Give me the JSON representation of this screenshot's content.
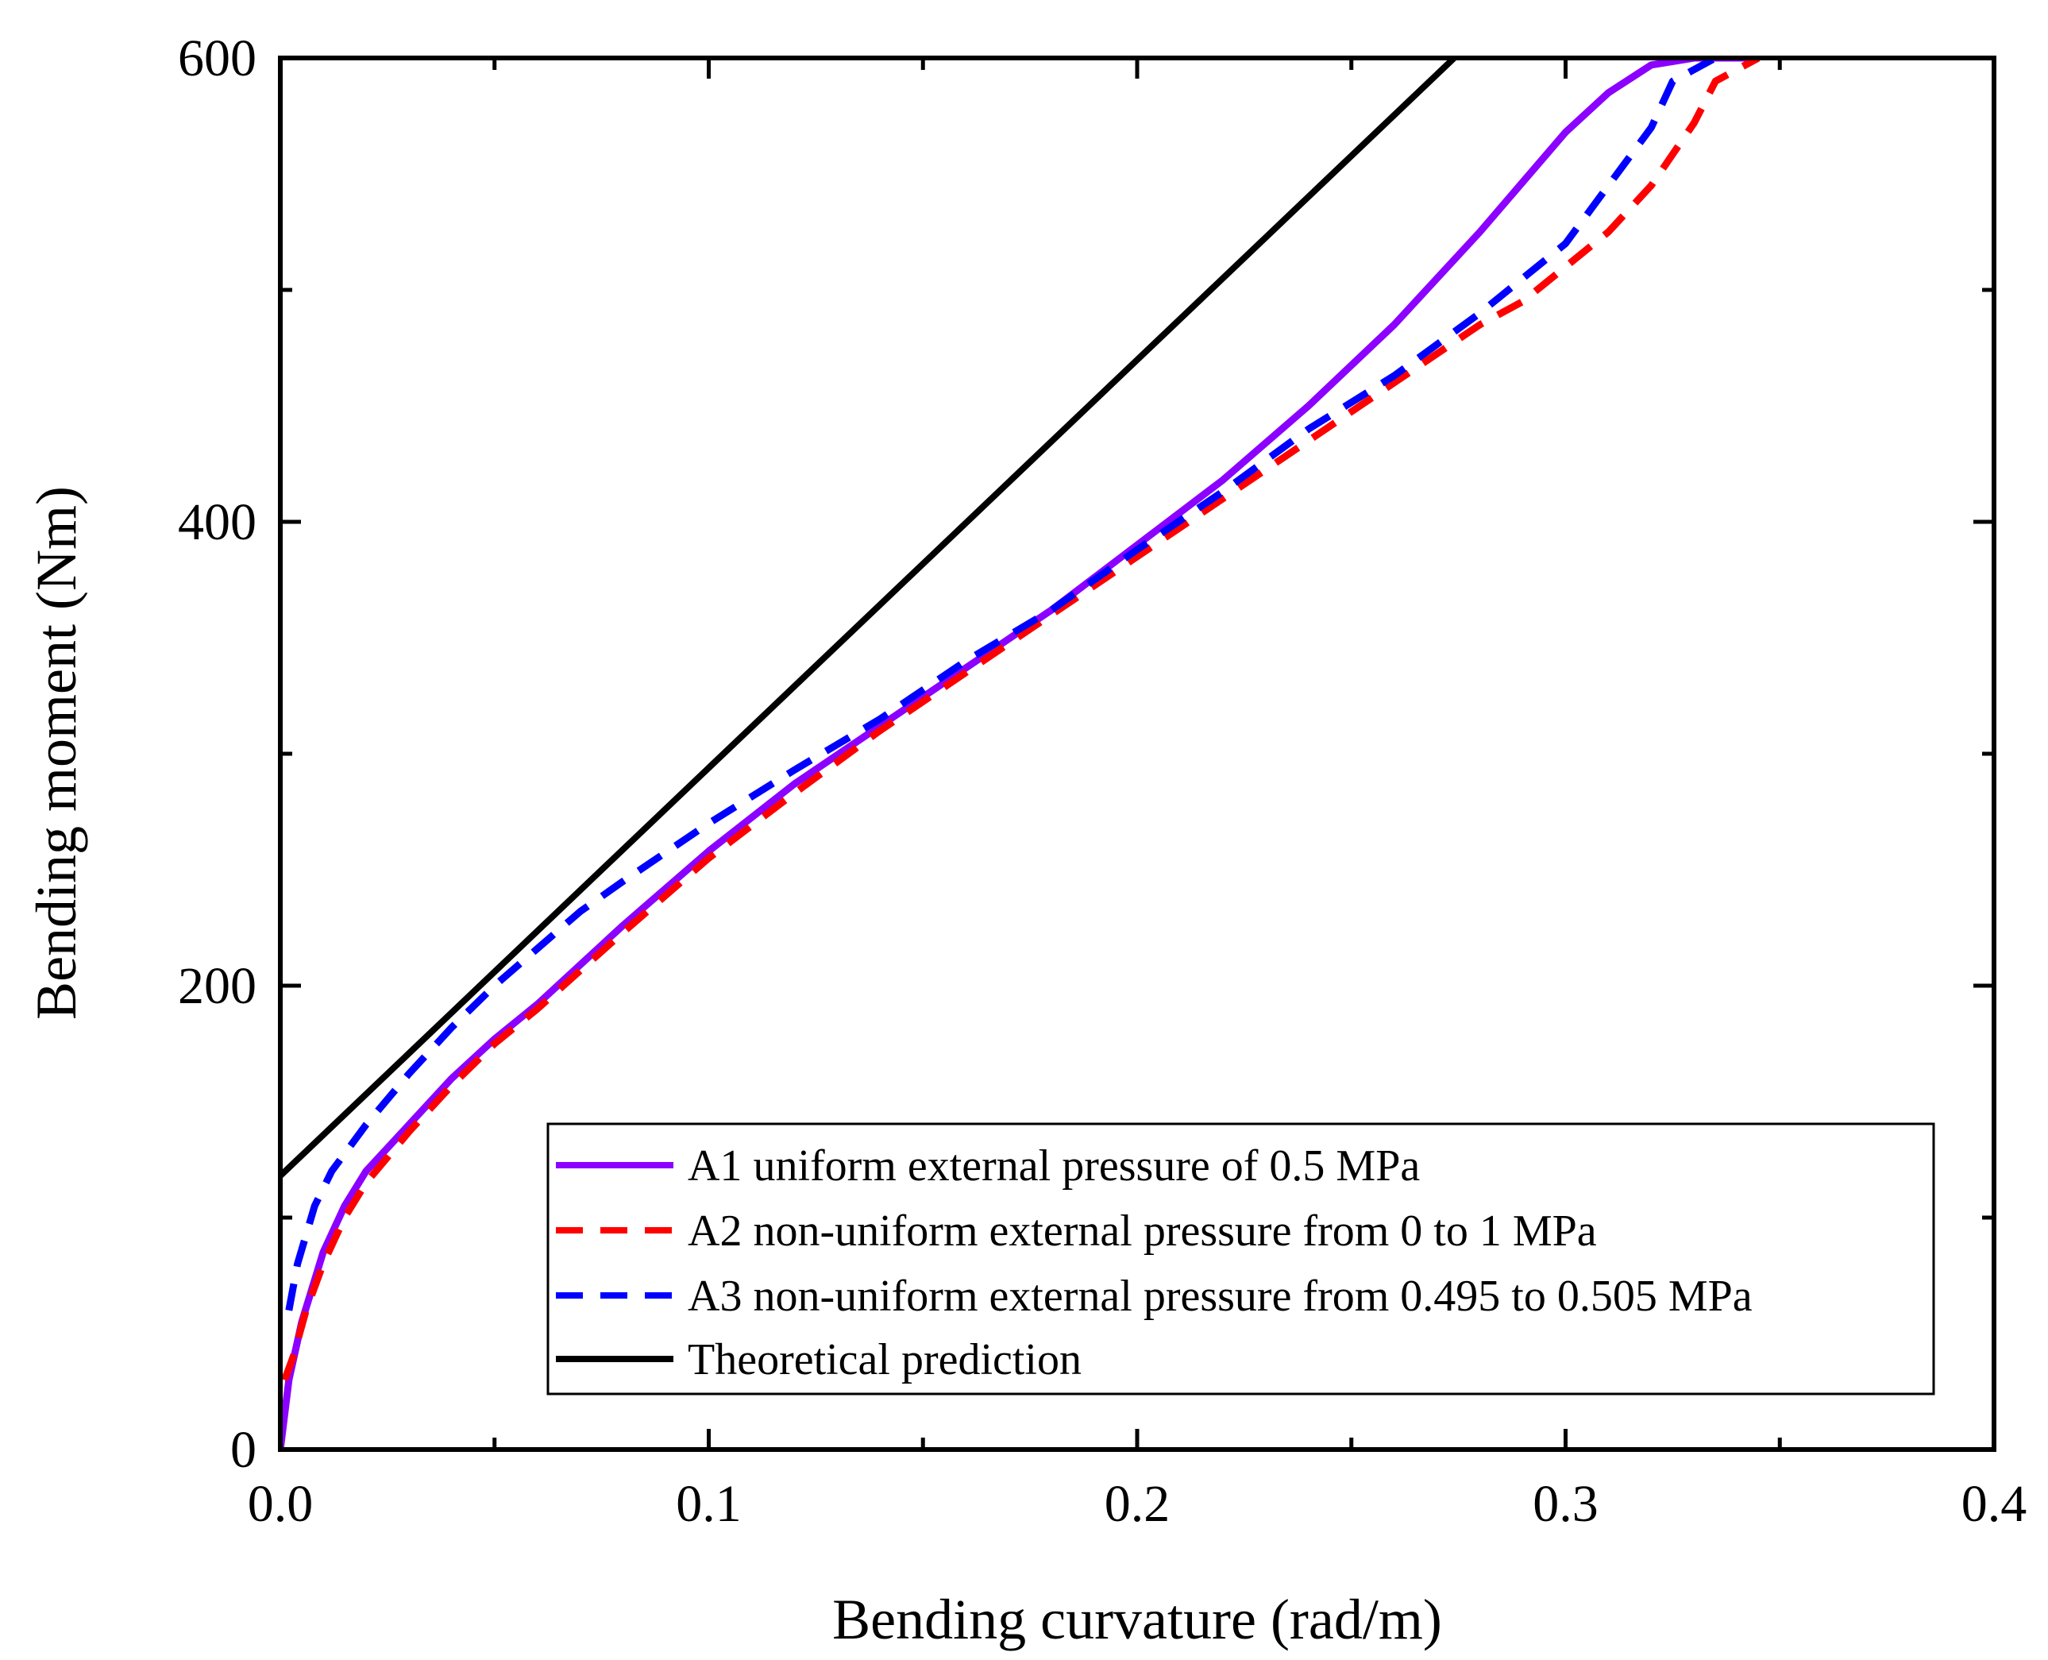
{
  "chart_data": {
    "type": "line",
    "title": "",
    "xlabel": "Bending curvature (rad/m)",
    "ylabel": "Bending moment (Nm)",
    "xlim": [
      0.0,
      0.4
    ],
    "ylim": [
      0,
      600
    ],
    "x_ticks": [
      0.0,
      0.1,
      0.2,
      0.3,
      0.4
    ],
    "x_tick_labels": [
      "0.0",
      "0.1",
      "0.2",
      "0.3",
      "0.4"
    ],
    "y_ticks": [
      0,
      200,
      400,
      600
    ],
    "y_tick_labels": [
      "0",
      "200",
      "400",
      "600"
    ],
    "grid": false,
    "legend_position": "bottom-right",
    "series": [
      {
        "name": "A1 uniform external pressure of 0.5 MPa",
        "color": "#8B00FF",
        "dash": "solid",
        "x": [
          0.0,
          0.002,
          0.005,
          0.01,
          0.015,
          0.02,
          0.03,
          0.04,
          0.05,
          0.06,
          0.08,
          0.1,
          0.12,
          0.14,
          0.16,
          0.18,
          0.2,
          0.22,
          0.24,
          0.26,
          0.28,
          0.3,
          0.31,
          0.32,
          0.33,
          0.34,
          0.345
        ],
        "y": [
          0,
          30,
          55,
          85,
          105,
          120,
          140,
          160,
          177,
          192,
          226,
          258,
          287,
          312,
          337,
          362,
          390,
          418,
          450,
          485,
          525,
          568,
          585,
          597,
          600,
          600,
          600
        ]
      },
      {
        "name": "A2 non-uniform external pressure from 0 to 1 MPa",
        "color": "#FF0000",
        "dash": "dashed",
        "x": [
          0.001,
          0.003,
          0.006,
          0.01,
          0.015,
          0.02,
          0.03,
          0.04,
          0.05,
          0.06,
          0.08,
          0.1,
          0.12,
          0.14,
          0.16,
          0.18,
          0.2,
          0.22,
          0.24,
          0.26,
          0.28,
          0.29,
          0.3,
          0.31,
          0.32,
          0.33,
          0.335,
          0.345
        ],
        "y": [
          30,
          40,
          60,
          80,
          100,
          115,
          137,
          157,
          175,
          190,
          223,
          255,
          283,
          310,
          335,
          360,
          385,
          410,
          435,
          460,
          485,
          495,
          510,
          525,
          545,
          572,
          590,
          600
        ]
      },
      {
        "name": "A3 non-uniform external pressure from 0.495 to 0.505 MPa",
        "color": "#0000FF",
        "dash": "dashed",
        "x": [
          0.002,
          0.004,
          0.008,
          0.012,
          0.02,
          0.03,
          0.04,
          0.05,
          0.06,
          0.07,
          0.08,
          0.1,
          0.12,
          0.14,
          0.16,
          0.18,
          0.2,
          0.22,
          0.24,
          0.26,
          0.28,
          0.3,
          0.31,
          0.32,
          0.325,
          0.335
        ],
        "y": [
          60,
          80,
          105,
          120,
          140,
          162,
          182,
          200,
          216,
          232,
          245,
          270,
          293,
          315,
          340,
          362,
          388,
          413,
          440,
          463,
          490,
          520,
          545,
          570,
          590,
          600
        ]
      },
      {
        "name": "Theoretical prediction",
        "color": "#000000",
        "dash": "solid",
        "x": [
          0.0,
          0.274
        ],
        "y": [
          118,
          600
        ]
      }
    ]
  }
}
